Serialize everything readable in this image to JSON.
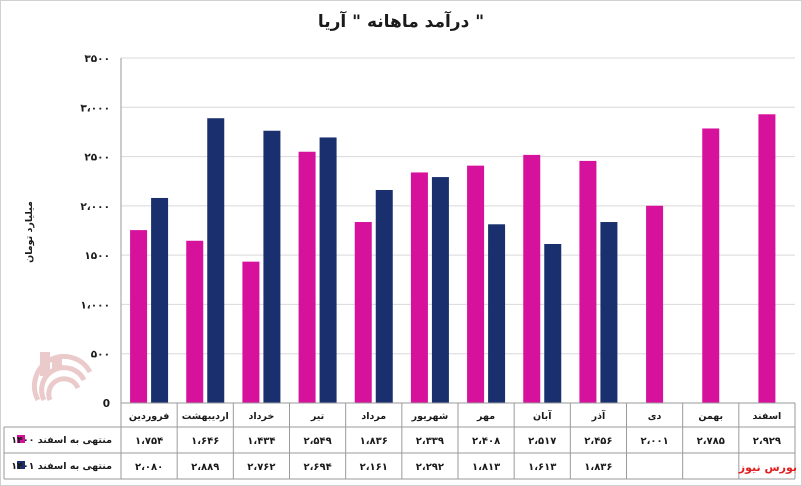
{
  "chart_data": {
    "type": "bar",
    "title": "درآمد ماهانه \" آریا \"",
    "ylabel": "میلیارد تومان",
    "ylim": [
      0,
      3500
    ],
    "yticks": [
      0,
      500,
      1000,
      1500,
      2000,
      2500,
      3000,
      3500
    ],
    "ytick_labels": [
      "0",
      "۵۰۰",
      "۱،۰۰۰",
      "۱۵۰۰",
      "۲،۰۰۰",
      "۲۵۰۰",
      "۳،۰۰۰",
      "۳۵۰۰"
    ],
    "grid": true,
    "legend": "table-below",
    "categories": [
      "فروردین",
      "اردیبهشت",
      "خرداد",
      "تیر",
      "مرداد",
      "شهریور",
      "مهر",
      "آبان",
      "آذر",
      "دی",
      "بهمن",
      "اسفند"
    ],
    "series": [
      {
        "name": "منتهی به اسفند ۱۴۰۰",
        "color": "#d6119b",
        "values": [
          1754,
          1646,
          1434,
          2549,
          1836,
          2339,
          2408,
          2517,
          2456,
          2001,
          2785,
          2929
        ],
        "labels": [
          "۱،۷۵۴",
          "۱،۶۴۶",
          "۱،۴۳۴",
          "۲،۵۴۹",
          "۱،۸۳۶",
          "۲،۳۳۹",
          "۲،۴۰۸",
          "۲،۵۱۷",
          "۲،۴۵۶",
          "۲،۰۰۱",
          "۲،۷۸۵",
          "۲،۹۲۹"
        ]
      },
      {
        "name": "منتهی به اسفند ۱۴۰۱",
        "color": "#1a2f6e",
        "values": [
          2080,
          2889,
          2762,
          2694,
          2161,
          2292,
          1813,
          1613,
          1836,
          null,
          null,
          null
        ],
        "labels": [
          "۲،۰۸۰",
          "۲،۸۸۹",
          "۲،۷۶۲",
          "۲،۶۹۴",
          "۲،۱۶۱",
          "۲،۲۹۲",
          "۱،۸۱۳",
          "۱،۶۱۳",
          "۱،۸۳۶",
          "",
          "",
          ""
        ]
      }
    ]
  },
  "watermark": {
    "logo_text": "بورس نیوز",
    "logo_color": "#d9a0a0"
  },
  "credit": {
    "text": "بورس نیوز",
    "color": "#e02020"
  }
}
